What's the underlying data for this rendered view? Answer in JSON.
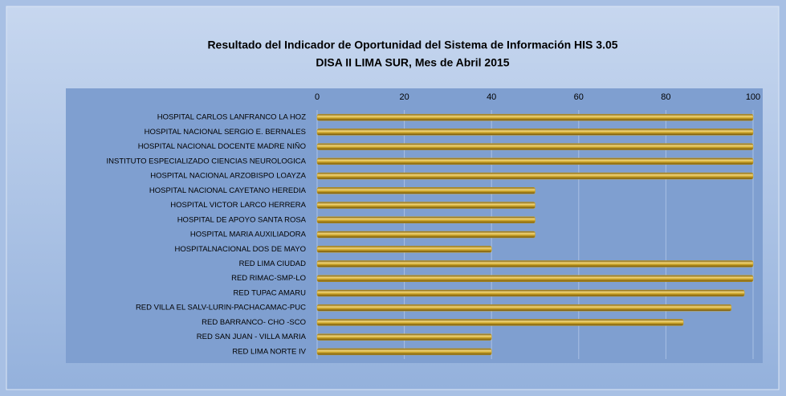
{
  "chart_data": {
    "type": "barh",
    "title": "Resultado del Indicador de Oportunidad del Sistema de Información HIS 3.05",
    "subtitle": "DISA II LIMA SUR, Mes de Abril 2015",
    "categories": [
      "HOSPITAL CARLOS LANFRANCO LA HOZ",
      "HOSPITAL NACIONAL SERGIO E. BERNALES",
      "HOSPITAL NACIONAL DOCENTE MADRE NIÑO",
      "INSTITUTO ESPECIALIZADO CIENCIAS NEUROLOGICA",
      "HOSPITAL NACIONAL ARZOBISPO LOAYZA",
      "HOSPITAL NACIONAL CAYETANO HEREDIA",
      "HOSPITAL VICTOR LARCO HERRERA",
      "HOSPITAL DE APOYO SANTA ROSA",
      "HOSPITAL MARIA AUXILIADORA",
      "HOSPITALNACIONAL  DOS DE MAYO",
      "RED LIMA CIUDAD",
      "RED RIMAC-SMP-LO",
      "RED TUPAC AMARU",
      "RED VILLA EL SALV-LURIN-PACHACAMAC-PUC",
      "RED BARRANCO- CHO -SCO",
      "RED SAN JUAN - VILLA MARIA",
      "RED LIMA NORTE IV"
    ],
    "values": [
      100,
      100,
      100,
      100,
      100,
      50,
      50,
      50,
      50,
      40,
      100,
      100,
      98,
      95,
      84,
      40,
      40
    ],
    "color": "#c9a227",
    "xlim": [
      0,
      100
    ],
    "xticks": [
      0,
      20,
      40,
      60,
      80,
      100
    ],
    "grid": true
  }
}
